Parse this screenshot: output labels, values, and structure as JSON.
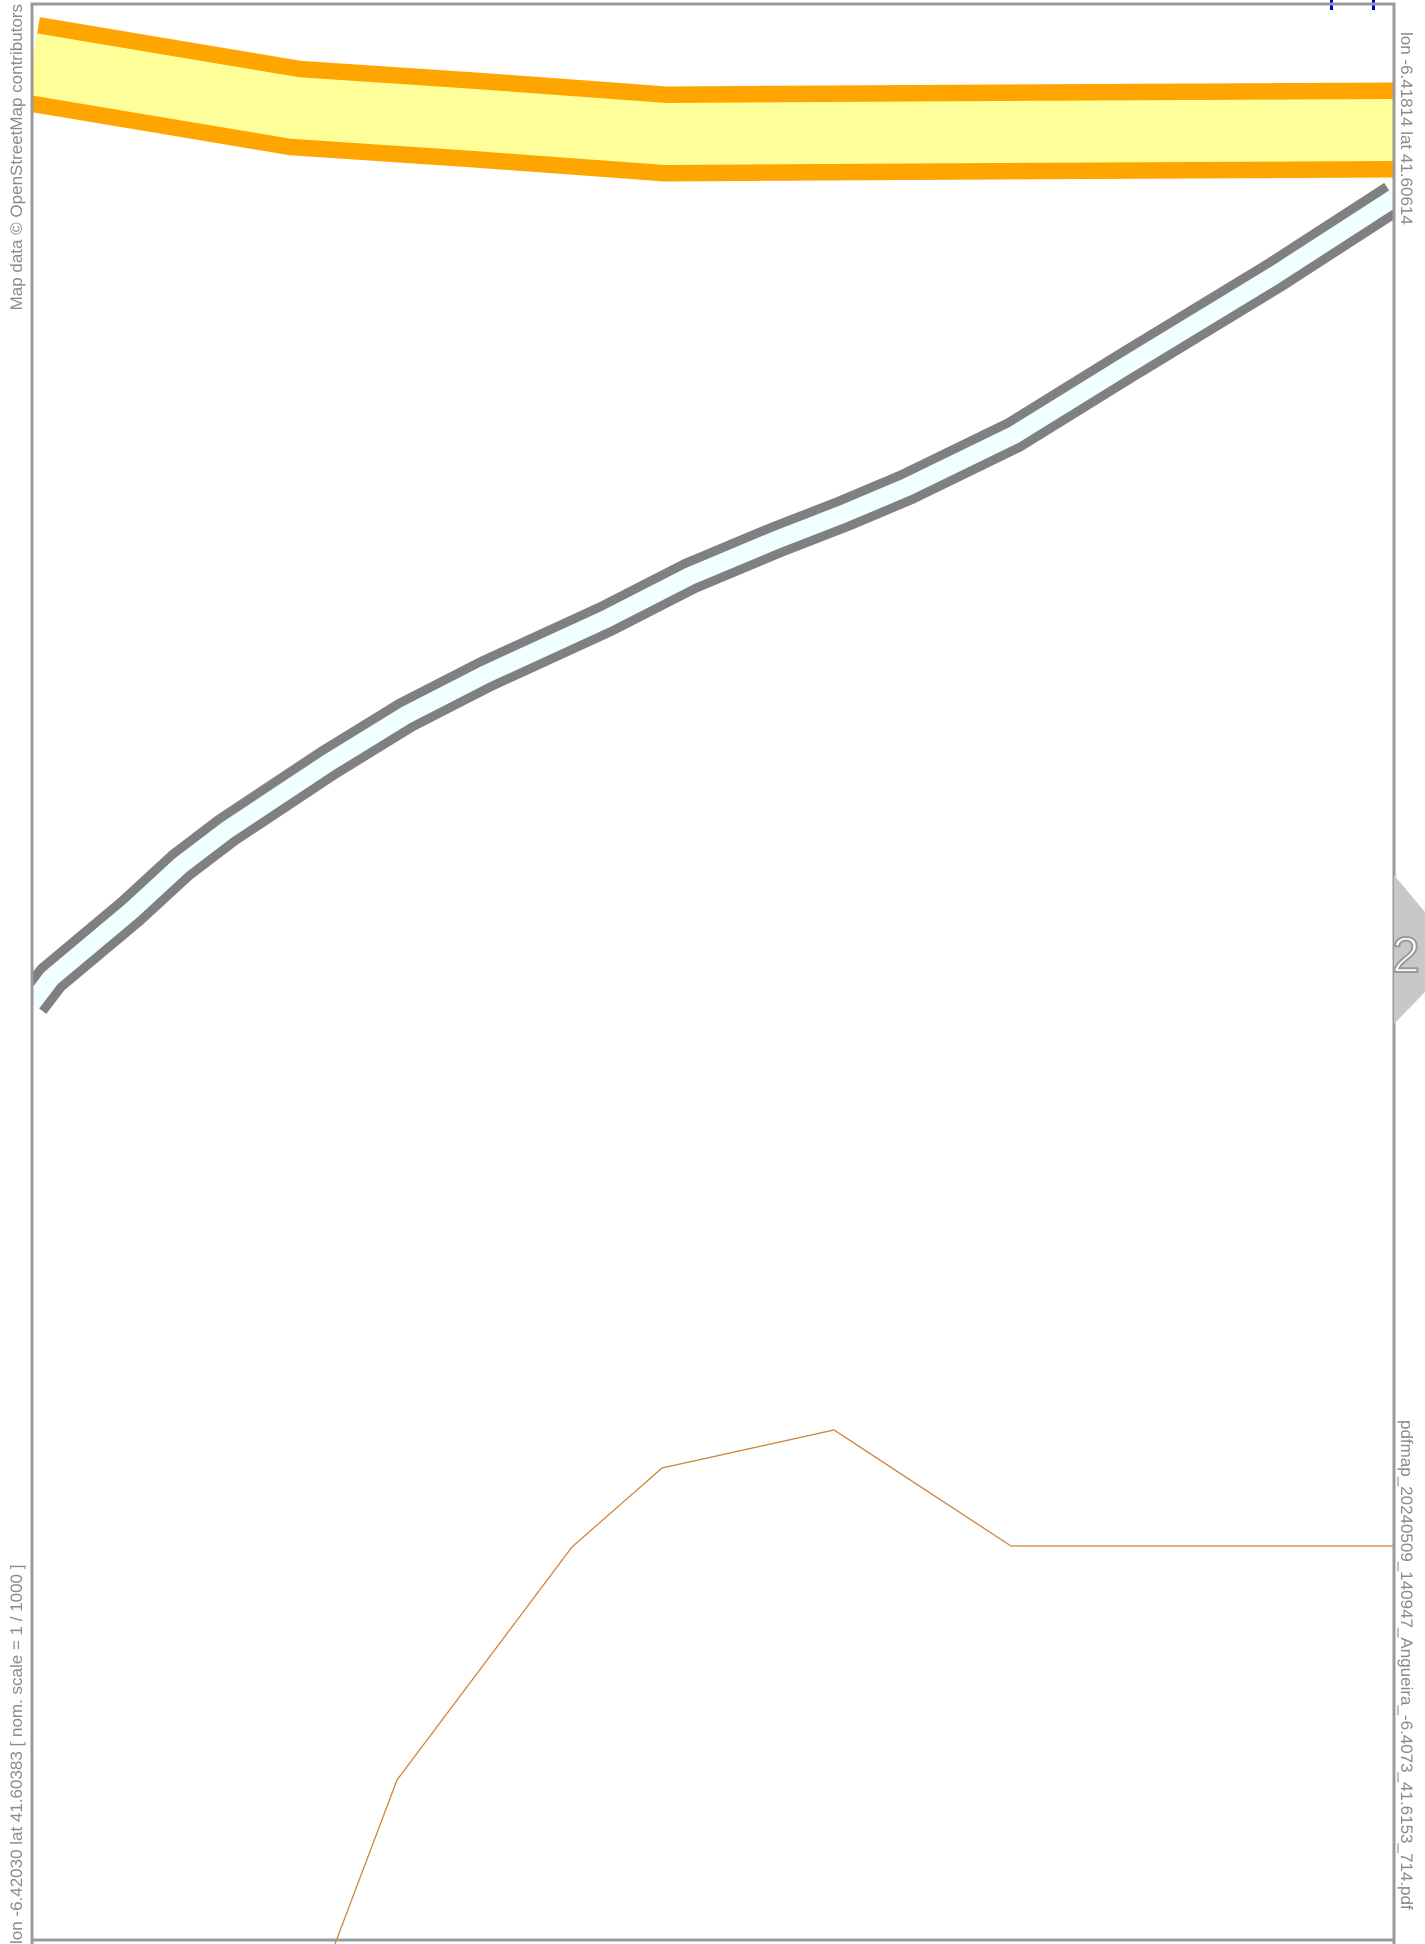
{
  "map": {
    "attribution": "Map data © OpenStreetMap contributors",
    "corner_ne": "lon -6.41814 lat 41.60614",
    "corner_sw": "lon -6.42030 lat 41.60383 [ nom. scale = 1 / 1000 ]",
    "filename": "pdfmap_20240509_140947_Angueira_-6.4073_41.6153_714.pdf",
    "adjacent_page_right": "2",
    "colors": {
      "primary_road_casing": "#ffa500",
      "primary_road_fill": "#ffff99",
      "water_casing": "#808080",
      "water_fill": "#f0ffff",
      "boundary_line": "#cd853f",
      "frame": "#999999",
      "page_tab": "#c8c8c8",
      "north_arrow": "#0000cc"
    }
  }
}
